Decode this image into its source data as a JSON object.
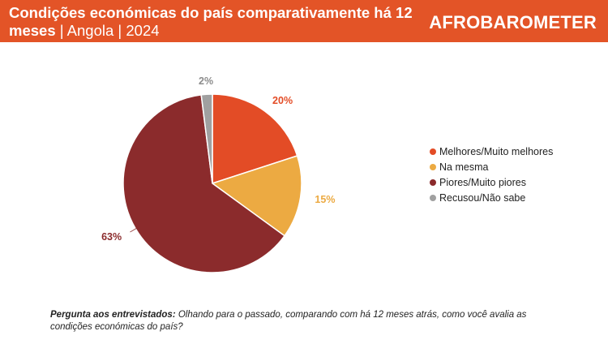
{
  "header": {
    "title_main": "Condições económicas do país comparativamente há 12 meses",
    "title_sub": "| Angola | 2024",
    "logo": "AFROBAROMETER"
  },
  "chart_data": {
    "type": "pie",
    "slices": [
      {
        "label": "Melhores/Muito melhores",
        "value": 20,
        "display": "20%",
        "color": "#e34c26"
      },
      {
        "label": "Na mesma",
        "value": 15,
        "display": "15%",
        "color": "#ecaa42"
      },
      {
        "label": "Piores/Muito piores",
        "value": 63,
        "display": "63%",
        "color": "#8b2b2c"
      },
      {
        "label": "Recusou/Não sabe",
        "value": 2,
        "display": "2%",
        "color": "#a0a0a0"
      }
    ],
    "legend_position": "right"
  },
  "footer": {
    "question_label": "Pergunta aos entrevistados:",
    "question_text": "Olhando para o passado, comparando com há 12 meses atrás, como você avalia as condições económicas do país?"
  }
}
